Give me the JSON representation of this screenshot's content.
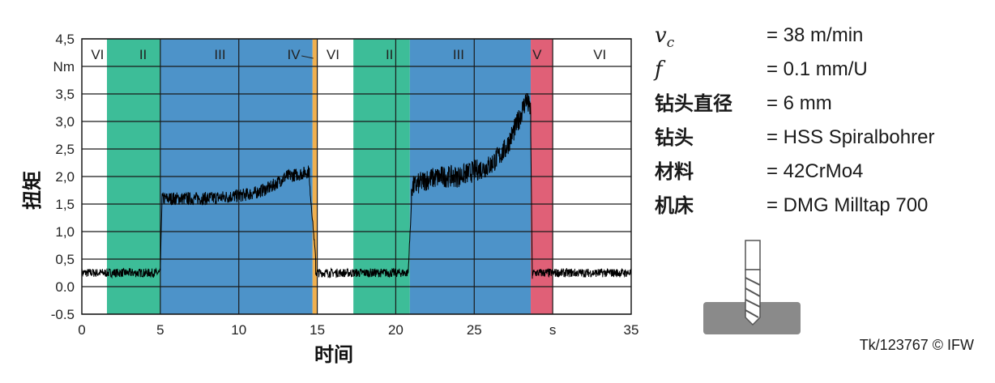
{
  "chart_data": {
    "type": "line",
    "xlabel": "时间",
    "ylabel": "扭矩",
    "x_unit_label": "s",
    "y_unit_label": "Nm",
    "xlim": [
      0,
      35
    ],
    "ylim": [
      -0.5,
      4.5
    ],
    "xticks": [
      0,
      5,
      10,
      15,
      20,
      25,
      35
    ],
    "xtick_labels": [
      "0",
      "5",
      "10",
      "15",
      "20",
      "25",
      "35"
    ],
    "yticks": [
      4.5,
      3.5,
      3.0,
      2.5,
      2.0,
      1.5,
      1.0,
      0.5,
      0.0,
      -0.5
    ],
    "ytick_labels": [
      "4,5",
      "3,5",
      "3,0",
      "2,5",
      "2,0",
      "1,5",
      "1,0",
      "0,5",
      "0.0",
      "-0.5"
    ],
    "grid": true,
    "phases": [
      {
        "label": "VI",
        "start": 0.0,
        "end": 1.6,
        "color": "#ffffff"
      },
      {
        "label": "II",
        "start": 1.6,
        "end": 5.0,
        "color": "#3dbd98"
      },
      {
        "label": "III",
        "start": 5.0,
        "end": 14.7,
        "color": "#4d93c9"
      },
      {
        "label": "IV",
        "start": 14.7,
        "end": 15.0,
        "color": "#f0b050"
      },
      {
        "label": "VI",
        "start": 15.0,
        "end": 17.3,
        "color": "#ffffff"
      },
      {
        "label": "II",
        "start": 17.3,
        "end": 20.9,
        "color": "#3dbd98"
      },
      {
        "label": "III",
        "start": 20.9,
        "end": 28.6,
        "color": "#4d93c9"
      },
      {
        "label": "V",
        "start": 28.6,
        "end": 30.0,
        "color": "#e06077"
      },
      {
        "label": "VI",
        "start": 30.0,
        "end": 35.0,
        "color": "#ffffff"
      }
    ],
    "series": [
      {
        "color": "#000000",
        "segments": [
          {
            "x": [
              0,
              5.0
            ],
            "y": [
              0.25,
              0.25
            ],
            "noise": 0.08
          },
          {
            "x": [
              5.0,
              5.1
            ],
            "y": [
              0.3,
              1.5
            ],
            "noise": 0.03
          },
          {
            "x": [
              5.1,
              6.0,
              8.0,
              10.0,
              11.0,
              12.0,
              13.0,
              14.0,
              14.5
            ],
            "y": [
              1.6,
              1.6,
              1.6,
              1.65,
              1.7,
              1.8,
              2.0,
              2.05,
              2.1
            ],
            "noise": 0.12
          },
          {
            "x": [
              14.5,
              14.9
            ],
            "y": [
              1.9,
              0.5
            ],
            "noise": 0.05
          },
          {
            "x": [
              14.9,
              20.8
            ],
            "y": [
              0.25,
              0.25
            ],
            "noise": 0.08
          },
          {
            "x": [
              20.8,
              21.0
            ],
            "y": [
              0.3,
              1.5
            ],
            "noise": 0.05
          },
          {
            "x": [
              21.0,
              22.0,
              23.0,
              24.0,
              25.0,
              26.0,
              27.0,
              27.8,
              28.3,
              28.6
            ],
            "y": [
              1.8,
              1.95,
              2.0,
              2.0,
              2.1,
              2.2,
              2.5,
              3.0,
              3.4,
              3.2
            ],
            "noise": 0.2
          },
          {
            "x": [
              28.6,
              28.7
            ],
            "y": [
              2.8,
              0.1
            ],
            "noise": 0.05
          },
          {
            "x": [
              28.7,
              35.0
            ],
            "y": [
              0.25,
              0.25
            ],
            "noise": 0.08
          }
        ]
      }
    ]
  },
  "params": [
    {
      "key": "",
      "value": "= 38 m/min"
    },
    {
      "key": "",
      "value": "= 0.1 mm/U"
    },
    {
      "key": "钻头直径",
      "value": "= 6 mm"
    },
    {
      "key": "钻头",
      "value": "= HSS Spiralbohrer"
    },
    {
      "key": "材料",
      "value": "= 42CrMo4"
    },
    {
      "key": "机床",
      "value": "= DMG Milltap 700"
    }
  ],
  "credit": "Tk/123767 © IFW"
}
